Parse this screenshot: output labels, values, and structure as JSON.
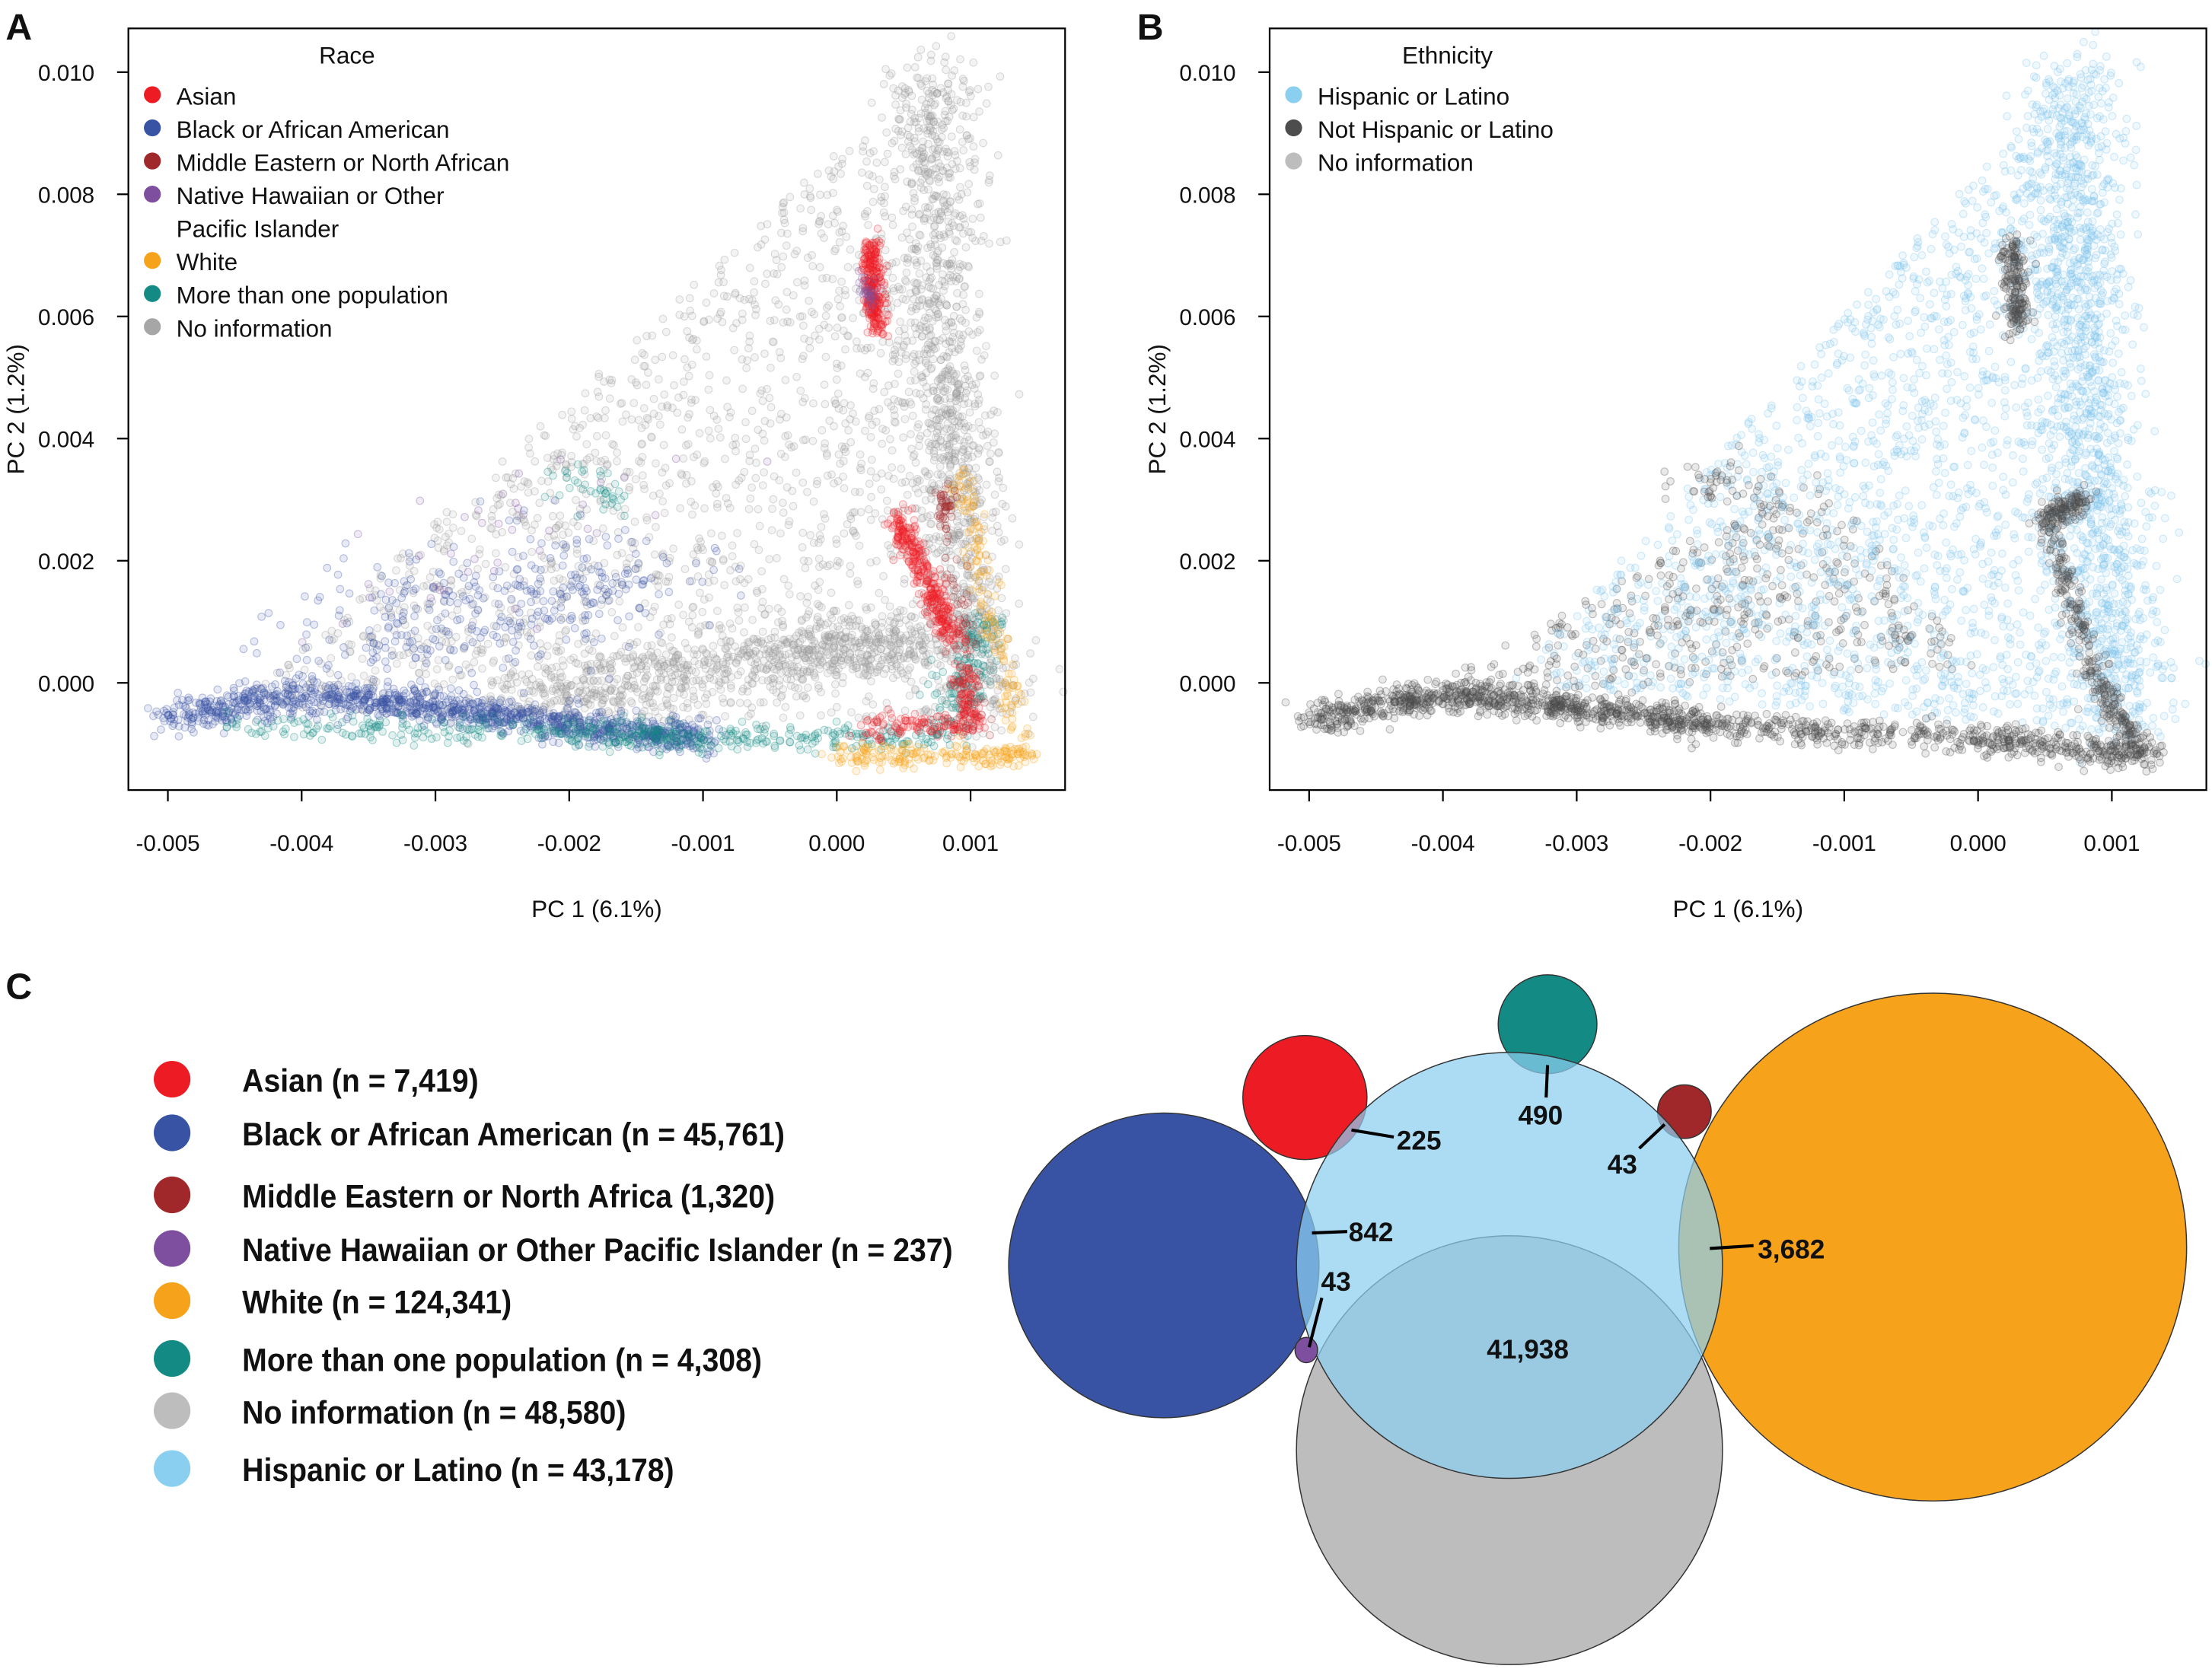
{
  "chart_data": [
    {
      "panel": "A",
      "type": "scatter",
      "xlabel": "PC 1 (6.1%)",
      "ylabel": "PC 2 (1.2%)",
      "xlim": [
        -0.0053,
        0.00165
      ],
      "ylim": [
        -0.00175,
        0.0107
      ],
      "xticks": [
        "-0.005",
        "-0.004",
        "-0.003",
        "-0.002",
        "-0.001",
        "0.000",
        "0.001"
      ],
      "yticks": [
        "0.000",
        "0.002",
        "0.004",
        "0.006",
        "0.008",
        "0.010"
      ],
      "legend_title": "Race",
      "legend_position": "top-left",
      "legend": [
        {
          "label": "Asian",
          "color": "#ED1C24"
        },
        {
          "label": "Black or African American",
          "color": "#3953A4"
        },
        {
          "label": "Middle Eastern or North African",
          "color": "#A1282A"
        },
        {
          "label": "Native Hawaiian or Other",
          "label2": "Pacific Islander",
          "color": "#7E4F9F"
        },
        {
          "label": "White",
          "color": "#F7A21B"
        },
        {
          "label": "More than one population",
          "color": "#148A84"
        },
        {
          "label": "No information",
          "color": "#A6A6A6"
        }
      ],
      "clusters": [
        {
          "group": "No information",
          "color": "#9A9A9A",
          "kind": "triangle",
          "pts": [
            [
              -0.0045,
              -0.0004
            ],
            [
              0.0007,
              0.0101
            ],
            [
              0.00125,
              -0.0009
            ]
          ],
          "n": 1600
        },
        {
          "group": "No information",
          "color": "#9A9A9A",
          "kind": "path",
          "pts": [
            [
              0.0007,
              0.0101
            ],
            [
              0.0008,
              0.005
            ],
            [
              0.0011,
              -0.0006
            ]
          ],
          "spread": [
            0.00018,
            0.0003
          ],
          "n": 1200
        },
        {
          "group": "No information",
          "color": "#9A9A9A",
          "kind": "path",
          "pts": [
            [
              -0.0025,
              -0.0002
            ],
            [
              -0.0005,
              0.0004
            ],
            [
              0.0007,
              0.0008
            ]
          ],
          "spread": [
            0.0002,
            0.0003
          ],
          "n": 900
        },
        {
          "group": "Black or African American",
          "color": "#3953A4",
          "kind": "path",
          "pts": [
            [
              -0.005,
              -0.0006
            ],
            [
              -0.004,
              -0.0002
            ],
            [
              -0.003,
              -0.0004
            ],
            [
              -0.002,
              -0.0007
            ],
            [
              -0.001,
              -0.0009
            ]
          ],
          "spread": [
            0.0001,
            0.00014
          ],
          "n": 1200
        },
        {
          "group": "Black or African American",
          "color": "#3953A4",
          "kind": "path",
          "pts": [
            [
              -0.0038,
              0.0007
            ],
            [
              -0.0025,
              0.0012
            ],
            [
              -0.0015,
              0.0018
            ]
          ],
          "spread": [
            0.0004,
            0.0005
          ],
          "n": 350
        },
        {
          "group": "More than one population",
          "color": "#148A84",
          "kind": "path",
          "pts": [
            [
              -0.0045,
              -0.0007
            ],
            [
              -0.002,
              -0.0008
            ],
            [
              -0.001,
              -0.0009
            ],
            [
              0.0008,
              -0.0009
            ],
            [
              0.0011,
              0.001
            ]
          ],
          "spread": [
            0.0001,
            0.00012
          ],
          "n": 600
        },
        {
          "group": "More than one population",
          "color": "#148A84",
          "kind": "path",
          "pts": [
            [
              -0.0021,
              0.0033
            ],
            [
              -0.0016,
              0.0031
            ]
          ],
          "spread": [
            0.00012,
            0.0002
          ],
          "n": 40
        },
        {
          "group": "Asian",
          "color": "#ED1C24",
          "kind": "path",
          "pts": [
            [
              0.00025,
              0.0072
            ],
            [
              0.0003,
              0.0058
            ]
          ],
          "spread": [
            4e-05,
            0.00012
          ],
          "n": 260
        },
        {
          "group": "Asian",
          "color": "#ED1C24",
          "kind": "path",
          "pts": [
            [
              0.00045,
              0.0027
            ],
            [
              0.0009,
              0.0006
            ]
          ],
          "spread": [
            5e-05,
            0.0001
          ],
          "n": 320
        },
        {
          "group": "Asian",
          "color": "#ED1C24",
          "kind": "path",
          "pts": [
            [
              0.0002,
              -0.0007
            ],
            [
              0.001,
              -0.0007
            ],
            [
              0.00095,
              0.0002
            ]
          ],
          "spread": [
            6e-05,
            0.0001
          ],
          "n": 200
        },
        {
          "group": "White",
          "color": "#F7A21B",
          "kind": "path",
          "pts": [
            [
              0.0009,
              0.0035
            ],
            [
              0.0014,
              -0.0012
            ],
            [
              0.0,
              -0.0012
            ]
          ],
          "spread": [
            5e-05,
            0.0001
          ],
          "n": 350
        },
        {
          "group": "Middle Eastern or North African",
          "color": "#A1282A",
          "kind": "path",
          "pts": [
            [
              0.0008,
              0.0031
            ],
            [
              0.0008,
              0.0026
            ],
            [
              0.0011,
              -0.0008
            ]
          ],
          "spread": [
            4e-05,
            0.0001
          ],
          "n": 80
        },
        {
          "group": "Native Hawaiian or Other Pacific Islander",
          "color": "#7E4F9F",
          "kind": "path",
          "pts": [
            [
              0.0002,
              0.0066
            ],
            [
              0.00025,
              0.0062
            ]
          ],
          "spread": [
            4e-05,
            0.0001
          ],
          "n": 30
        },
        {
          "group": "Native Hawaiian or Other Pacific Islander",
          "color": "#7E4F9F",
          "kind": "path",
          "pts": [
            [
              -0.0035,
              0.001
            ],
            [
              -0.0015,
              0.0035
            ]
          ],
          "spread": [
            0.0004,
            0.0004
          ],
          "n": 40
        }
      ]
    },
    {
      "panel": "B",
      "type": "scatter",
      "xlabel": "PC 1 (6.1%)",
      "ylabel": "PC 2 (1.2%)",
      "xlim": [
        -0.0053,
        0.00165
      ],
      "ylim": [
        -0.00175,
        0.0107
      ],
      "xticks": [
        "-0.005",
        "-0.004",
        "-0.003",
        "-0.002",
        "-0.001",
        "0.000",
        "0.001"
      ],
      "yticks": [
        "0.000",
        "0.002",
        "0.004",
        "0.006",
        "0.008",
        "0.010"
      ],
      "legend_title": "Ethnicity",
      "legend_position": "top-left",
      "legend": [
        {
          "label": "Hispanic or Latino",
          "color": "#8ACEF0"
        },
        {
          "label": "Not Hispanic or Latino",
          "color": "#4D4D4D"
        },
        {
          "label": "No information",
          "color": "#BDBDBD"
        }
      ],
      "clusters": [
        {
          "group": "Not Hispanic or Latino",
          "color": "#4D4D4D",
          "kind": "triangle",
          "pts": [
            [
              -0.0042,
              -0.0002
            ],
            [
              -0.0012,
              0.0035
            ],
            [
              0.0,
              0.0002
            ]
          ],
          "n": 500
        },
        {
          "group": "Hispanic or Latino",
          "color": "#7EC4EC",
          "kind": "triangle",
          "pts": [
            [
              -0.0035,
              0.0
            ],
            [
              0.0007,
              0.0101
            ],
            [
              0.00125,
              -0.0009
            ]
          ],
          "n": 2000
        },
        {
          "group": "Hispanic or Latino",
          "color": "#7EC4EC",
          "kind": "path",
          "pts": [
            [
              0.0007,
              0.0101
            ],
            [
              0.0008,
              0.005
            ],
            [
              0.0011,
              -0.0006
            ]
          ],
          "spread": [
            0.0002,
            0.0003
          ],
          "n": 1200
        },
        {
          "group": "Not Hispanic or Latino",
          "color": "#4D4D4D",
          "kind": "path",
          "pts": [
            [
              -0.005,
              -0.0006
            ],
            [
              -0.004,
              -0.0002
            ],
            [
              -0.003,
              -0.0004
            ],
            [
              -0.002,
              -0.0007
            ],
            [
              0.0,
              -0.0009
            ],
            [
              0.0013,
              -0.0012
            ]
          ],
          "spread": [
            0.0001,
            0.00012
          ],
          "n": 1500
        },
        {
          "group": "Not Hispanic or Latino",
          "color": "#4D4D4D",
          "kind": "path",
          "pts": [
            [
              0.00025,
              0.0072
            ],
            [
              0.0003,
              0.0058
            ]
          ],
          "spread": [
            4e-05,
            0.00012
          ],
          "n": 200
        },
        {
          "group": "Not Hispanic or Latino",
          "color": "#4D4D4D",
          "kind": "path",
          "pts": [
            [
              0.0008,
              0.003
            ],
            [
              0.0005,
              0.0027
            ],
            [
              0.0009,
              0.0
            ],
            [
              0.0012,
              -0.0011
            ]
          ],
          "spread": [
            5e-05,
            0.0001
          ],
          "n": 450
        },
        {
          "group": "Not Hispanic or Latino",
          "color": "#4D4D4D",
          "kind": "path",
          "pts": [
            [
              -0.0021,
              0.0033
            ],
            [
              -0.0016,
              0.0031
            ]
          ],
          "spread": [
            0.00015,
            0.0002
          ],
          "n": 50
        }
      ]
    },
    {
      "panel": "C",
      "type": "venn",
      "legend": [
        {
          "label": "Asian (n = 7,419)",
          "color": "#ED1C24"
        },
        {
          "label": "Black or African American (n = 45,761)",
          "color": "#3953A4"
        },
        {
          "label": "Middle Eastern or North Africa (1,320)",
          "color": "#A1282A"
        },
        {
          "label": "Native Hawaiian or Other Pacific Islander (n = 237)",
          "color": "#7E4F9F"
        },
        {
          "label": "White (n = 124,341)",
          "color": "#F7A21B"
        },
        {
          "label": "More than one population (n = 4,308)",
          "color": "#148A84"
        },
        {
          "label": "No information (n = 48,580)",
          "color": "#BDBDBD"
        },
        {
          "label": "Hispanic or Latino (n = 43,178)",
          "color": "#8ACEF0"
        }
      ],
      "overlaps": [
        {
          "sets": [
            "Asian",
            "Hispanic or Latino"
          ],
          "value": "225"
        },
        {
          "sets": [
            "More than one population",
            "Hispanic or Latino"
          ],
          "value": "490"
        },
        {
          "sets": [
            "Middle Eastern or North Africa",
            "Hispanic or Latino"
          ],
          "value": "43"
        },
        {
          "sets": [
            "Black or African American",
            "Hispanic or Latino"
          ],
          "value": "842"
        },
        {
          "sets": [
            "Native Hawaiian or Other Pacific Islander",
            "Hispanic or Latino"
          ],
          "value": "43"
        },
        {
          "sets": [
            "White",
            "Hispanic or Latino"
          ],
          "value": "3,682"
        },
        {
          "sets": [
            "No information",
            "Hispanic or Latino"
          ],
          "value": "41,938"
        }
      ]
    }
  ],
  "panel_letters": [
    "A",
    "B",
    "C"
  ]
}
